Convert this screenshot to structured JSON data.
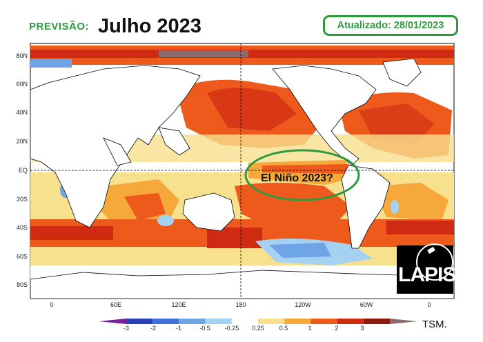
{
  "header": {
    "prefix": "PREVISÃO:",
    "title": "Julho 2023",
    "updated": "Atualizado: 28/01/2023"
  },
  "map": {
    "lat_labels": [
      "80N",
      "60N",
      "40N",
      "20N",
      "EQ",
      "20S",
      "40S",
      "60S",
      "80S"
    ],
    "lon_labels": [
      "0",
      "60E",
      "120E",
      "180",
      "120W",
      "60W",
      "0"
    ],
    "annotation": "El Niño 2023?",
    "variable": "TSM.",
    "logo": "LAPIS"
  },
  "colorbar": {
    "labels": [
      "-3",
      "-2",
      "-1",
      "-0.5",
      "-0.25",
      "0.25",
      "0.5",
      "1",
      "2",
      "3"
    ],
    "colors": [
      "#2a3fb5",
      "#3f72d6",
      "#6fa4e6",
      "#a6d2f2",
      "#ffffff",
      "#f7e08e",
      "#f6a93a",
      "#ee5a1c",
      "#cf2a12",
      "#8b1a12"
    ],
    "under_color": "#7a1f9a",
    "over_color": "#8c6b6b"
  },
  "colors": {
    "accent_green": "#2e9a3e",
    "land": "#ffffff",
    "warm": "#ee5a1c",
    "hot": "#cf2a12",
    "mild": "#f6a93a",
    "cool": "#f7e08e",
    "cold": "#a6d2f2"
  }
}
